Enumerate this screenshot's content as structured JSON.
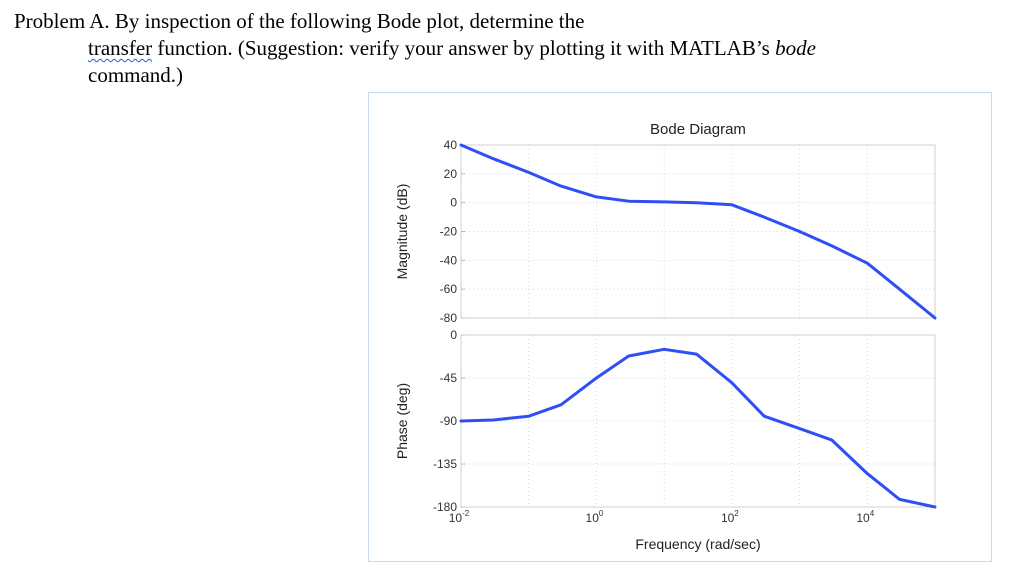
{
  "problem": {
    "line1": "Problem A.  By inspection of the following Bode plot, determine the",
    "line2_word": "transfer",
    "line2_rest": " function. (Suggestion:  verify your answer by plotting it with MATLAB’s ",
    "line2_italic": "bode",
    "line3": "command.)"
  },
  "chart_data": [
    {
      "type": "line",
      "panel": "magnitude",
      "title": "Bode Diagram",
      "ylabel": "Magnitude (dB)",
      "xscale": "log",
      "xlim": [
        0.01,
        100000
      ],
      "ylim": [
        -80,
        40
      ],
      "ytick_labels": [
        "40",
        "20",
        "0",
        "-20",
        "-40",
        "-60",
        "-80"
      ],
      "ytick_values": [
        40,
        20,
        0,
        -20,
        -40,
        -60,
        -80
      ],
      "grid": true,
      "color": "#2f4ff5",
      "x": [
        0.01,
        0.03,
        0.1,
        0.3,
        1,
        3,
        10,
        30,
        100,
        300,
        1000,
        3000,
        10000,
        30000,
        100000
      ],
      "y": [
        40,
        30.5,
        21,
        11.5,
        4,
        1,
        0.5,
        0,
        -1.5,
        -10,
        -20,
        -30,
        -42,
        -60,
        -80
      ]
    },
    {
      "type": "line",
      "panel": "phase",
      "ylabel": "Phase (deg)",
      "xlabel": "Frequency  (rad/sec)",
      "xscale": "log",
      "xlim": [
        0.01,
        100000
      ],
      "ylim": [
        -180,
        0
      ],
      "ytick_labels": [
        "0",
        "-45",
        "-90",
        "-135",
        "-180"
      ],
      "ytick_values": [
        0,
        -45,
        -90,
        -135,
        -180
      ],
      "xtick_values": [
        0.01,
        1,
        100,
        10000
      ],
      "xtick_base": "10",
      "xtick_exponents": [
        "-2",
        "0",
        "2",
        "4"
      ],
      "grid": true,
      "color": "#2f4ff5",
      "x": [
        0.01,
        0.03,
        0.1,
        0.3,
        1,
        3,
        10,
        30,
        100,
        300,
        1000,
        3000,
        10000,
        30000,
        100000
      ],
      "y": [
        -90,
        -89,
        -85,
        -73,
        -45,
        -22,
        -15,
        -20,
        -50,
        -85,
        -98,
        -110,
        -145,
        -172,
        -180
      ]
    }
  ]
}
